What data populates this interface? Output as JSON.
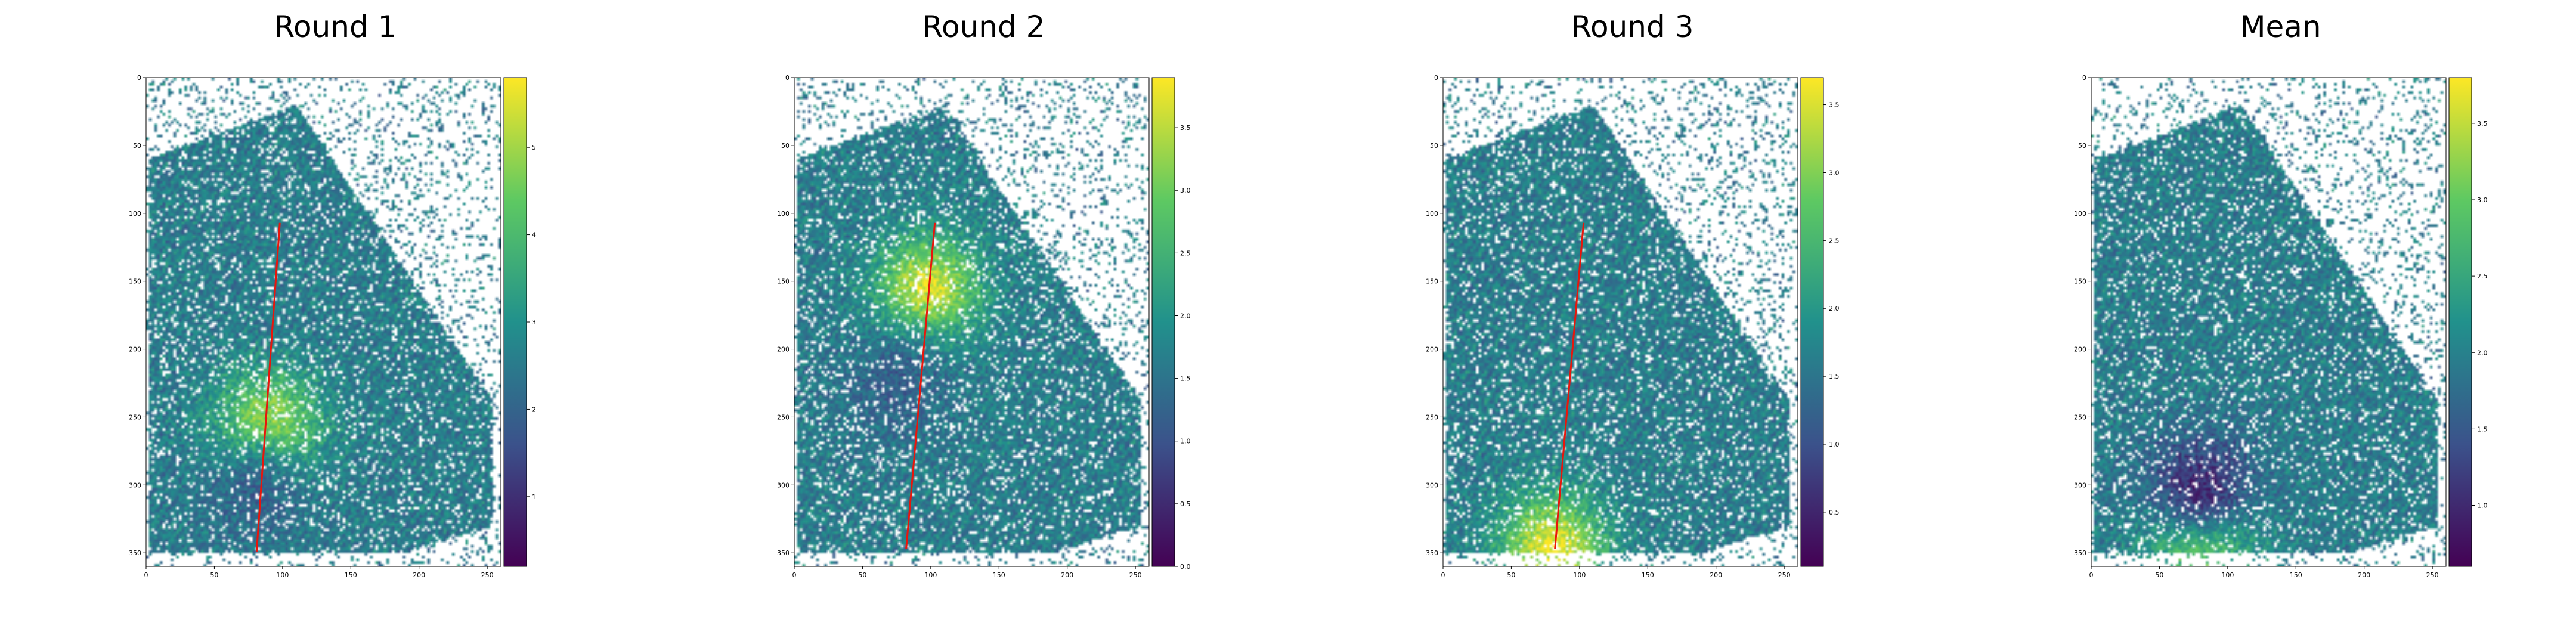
{
  "chart_data": [
    {
      "type": "heatmap",
      "title": "Round 1",
      "xlabel": "",
      "ylabel": "",
      "xlim": [
        0,
        260
      ],
      "ylim": [
        360,
        0
      ],
      "x_ticks": [
        "0",
        "50",
        "100",
        "150",
        "200",
        "250"
      ],
      "y_ticks": [
        "0",
        "50",
        "100",
        "150",
        "200",
        "250",
        "300",
        "350"
      ],
      "colorbar": {
        "range": [
          0.2,
          5.8
        ],
        "ticks": [
          "1",
          "2",
          "3",
          "4",
          "5"
        ],
        "colormap": "viridis"
      },
      "line": {
        "color": "#e8160c",
        "start": [
          98,
          107
        ],
        "end": [
          81,
          349
        ]
      },
      "hotspots": [
        {
          "x": 90,
          "y": 255,
          "value": 5.2
        },
        {
          "x": 80,
          "y": 305,
          "value": 2.0
        }
      ]
    },
    {
      "type": "heatmap",
      "title": "Round 2",
      "xlabel": "",
      "ylabel": "",
      "xlim": [
        0,
        260
      ],
      "ylim": [
        360,
        0
      ],
      "x_ticks": [
        "0",
        "50",
        "100",
        "150",
        "200",
        "250"
      ],
      "y_ticks": [
        "0",
        "50",
        "100",
        "150",
        "200",
        "250",
        "300",
        "350"
      ],
      "colorbar": {
        "range": [
          0.0,
          3.9
        ],
        "ticks": [
          "0.0",
          "0.5",
          "1.0",
          "1.5",
          "2.0",
          "2.5",
          "3.0",
          "3.5"
        ],
        "colormap": "viridis"
      },
      "line": {
        "color": "#e8160c",
        "start": [
          103,
          107
        ],
        "end": [
          82,
          347
        ]
      },
      "hotspots": [
        {
          "x": 98,
          "y": 155,
          "value": 3.7
        },
        {
          "x": 75,
          "y": 225,
          "value": 1.2
        }
      ]
    },
    {
      "type": "heatmap",
      "title": "Round 3",
      "xlabel": "",
      "ylabel": "",
      "xlim": [
        0,
        260
      ],
      "ylim": [
        360,
        0
      ],
      "x_ticks": [
        "0",
        "50",
        "100",
        "150",
        "200",
        "250"
      ],
      "y_ticks": [
        "0",
        "50",
        "100",
        "150",
        "200",
        "250",
        "300",
        "350"
      ],
      "colorbar": {
        "range": [
          0.1,
          3.7
        ],
        "ticks": [
          "0.5",
          "1.0",
          "1.5",
          "2.0",
          "2.5",
          "3.0",
          "3.5"
        ],
        "colormap": "viridis"
      },
      "line": {
        "color": "#e8160c",
        "start": [
          103,
          107
        ],
        "end": [
          82,
          347
        ]
      },
      "hotspots": [
        {
          "x": 80,
          "y": 345,
          "value": 3.6
        }
      ]
    },
    {
      "type": "heatmap",
      "title": "Mean",
      "xlabel": "",
      "ylabel": "",
      "xlim": [
        0,
        260
      ],
      "ylim": [
        360,
        0
      ],
      "x_ticks": [
        "0",
        "50",
        "100",
        "150",
        "200",
        "250"
      ],
      "y_ticks": [
        "0",
        "50",
        "100",
        "150",
        "200",
        "250",
        "300",
        "350"
      ],
      "colorbar": {
        "range": [
          0.6,
          3.8
        ],
        "ticks": [
          "1.0",
          "1.5",
          "2.0",
          "2.5",
          "3.0",
          "3.5"
        ],
        "colormap": "viridis"
      },
      "hotspots": [
        {
          "x": 80,
          "y": 345,
          "value": 3.2
        },
        {
          "x": 80,
          "y": 300,
          "value": 1.0
        }
      ]
    }
  ]
}
